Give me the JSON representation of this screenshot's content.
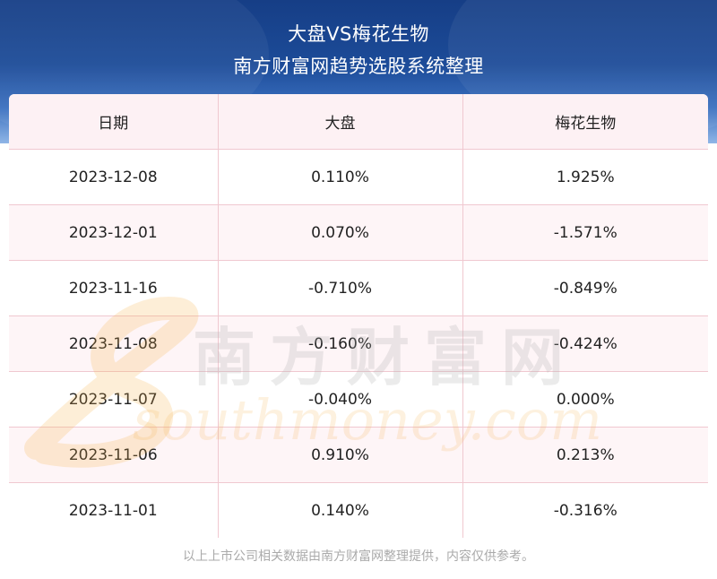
{
  "header": {
    "title_line1": "大盘VS梅花生物",
    "title_line2": "南方财富网趋势选股系统整理"
  },
  "table": {
    "columns": [
      "日期",
      "大盘",
      "梅花生物"
    ],
    "rows": [
      [
        "2023-12-08",
        "0.110%",
        "1.925%"
      ],
      [
        "2023-12-01",
        "0.070%",
        "-1.571%"
      ],
      [
        "2023-11-16",
        "-0.710%",
        "-0.849%"
      ],
      [
        "2023-11-08",
        "-0.160%",
        "-0.424%"
      ],
      [
        "2023-11-07",
        "-0.040%",
        "0.000%"
      ],
      [
        "2023-11-06",
        "0.910%",
        "0.213%"
      ],
      [
        "2023-11-01",
        "0.140%",
        "-0.316%"
      ]
    ]
  },
  "watermark": {
    "cn_text": "南方财富网",
    "en_text": "southmoney.com"
  },
  "footer": {
    "text": "以上上市公司相关数据由南方财富网整理提供，内容仅供参考。"
  },
  "colors": {
    "header_blue": "#1c4b98",
    "border_pink": "#f0c8d0",
    "alt_row": "#fdf1f4",
    "watermark_orange": "#f6b24b"
  }
}
